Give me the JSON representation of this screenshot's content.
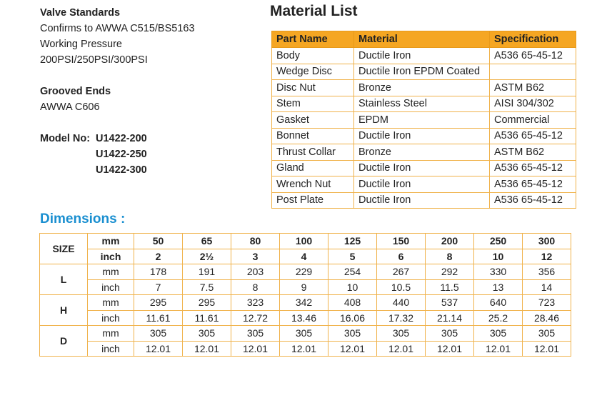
{
  "specs": {
    "valve_standards_heading": "Valve Standards",
    "standard_line": "Confirms to AWWA C515/BS5163",
    "pressure_label": "Working Pressure",
    "pressure_values": "200PSI/250PSI/300PSI",
    "grooved_heading": "Grooved Ends",
    "grooved_value": "AWWA C606",
    "model_label": "Model No:",
    "models": [
      "U1422-200",
      "U1422-250",
      "U1422-300"
    ]
  },
  "material": {
    "title": "Material List",
    "headers": [
      "Part Name",
      "Material",
      "Specification"
    ],
    "rows": [
      [
        "Body",
        "Ductile Iron",
        "A536 65-45-12"
      ],
      [
        "Wedge Disc",
        "Ductile Iron EPDM Coated",
        ""
      ],
      [
        "Disc Nut",
        "Bronze",
        "ASTM B62"
      ],
      [
        "Stem",
        "Stainless Steel",
        "AISI 304/302"
      ],
      [
        "Gasket",
        "EPDM",
        "Commercial"
      ],
      [
        "Bonnet",
        "Ductile Iron",
        "A536 65-45-12"
      ],
      [
        "Thrust Collar",
        "Bronze",
        "ASTM B62"
      ],
      [
        "Gland",
        "Ductile Iron",
        "A536 65-45-12"
      ],
      [
        "Wrench Nut",
        "Ductile Iron",
        "A536 65-45-12"
      ],
      [
        "Post Plate",
        "Ductile Iron",
        "A536 65-45-12"
      ]
    ]
  },
  "dimensions": {
    "title": "Dimensions :",
    "size_label": "SIZE",
    "mm_label": "mm",
    "inch_label": "inch",
    "sizes_mm": [
      "50",
      "65",
      "80",
      "100",
      "125",
      "150",
      "200",
      "250",
      "300"
    ],
    "sizes_inch": [
      "2",
      "2½",
      "3",
      "4",
      "5",
      "6",
      "8",
      "10",
      "12"
    ],
    "groups": [
      {
        "label": "L",
        "mm": [
          "178",
          "191",
          "203",
          "229",
          "254",
          "267",
          "292",
          "330",
          "356"
        ],
        "inch": [
          "7",
          "7.5",
          "8",
          "9",
          "10",
          "10.5",
          "11.5",
          "13",
          "14"
        ]
      },
      {
        "label": "H",
        "mm": [
          "295",
          "295",
          "323",
          "342",
          "408",
          "440",
          "537",
          "640",
          "723"
        ],
        "inch": [
          "11.61",
          "11.61",
          "12.72",
          "13.46",
          "16.06",
          "17.32",
          "21.14",
          "25.2",
          "28.46"
        ]
      },
      {
        "label": "D",
        "mm": [
          "305",
          "305",
          "305",
          "305",
          "305",
          "305",
          "305",
          "305",
          "305"
        ],
        "inch": [
          "12.01",
          "12.01",
          "12.01",
          "12.01",
          "12.01",
          "12.01",
          "12.01",
          "12.01",
          "12.01"
        ]
      }
    ]
  }
}
